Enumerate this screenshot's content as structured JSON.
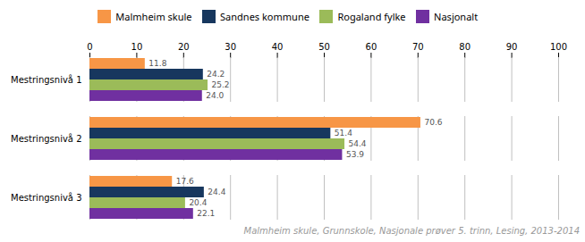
{
  "chart_data": {
    "type": "bar",
    "orientation": "horizontal",
    "categories": [
      "Mestringsnivå 1",
      "Mestringsnivå 2",
      "Mestringsnivå 3"
    ],
    "series": [
      {
        "name": "Malmheim skule",
        "color": "#F79646",
        "values": [
          11.8,
          70.6,
          17.6
        ]
      },
      {
        "name": "Sandnes kommune",
        "color": "#17375E",
        "values": [
          24.2,
          51.4,
          24.4
        ]
      },
      {
        "name": "Rogaland fylke",
        "color": "#9BBB59",
        "values": [
          25.2,
          54.4,
          20.4
        ]
      },
      {
        "name": "Nasjonalt",
        "color": "#7030A0",
        "values": [
          24.0,
          53.9,
          22.1
        ],
        "value_labels": [
          "24.0",
          "53.9",
          "22.1"
        ]
      }
    ],
    "xlim": [
      0,
      100
    ],
    "xticks": [
      0,
      10,
      20,
      30,
      40,
      50,
      60,
      70,
      80,
      90,
      100
    ],
    "grid": true,
    "legend": "top",
    "data_labels": true,
    "annotations": [
      "Malmheim skule, Grunnskole, Nasjonale prøver 5. trinn, Lesing, 2013-2014"
    ]
  }
}
